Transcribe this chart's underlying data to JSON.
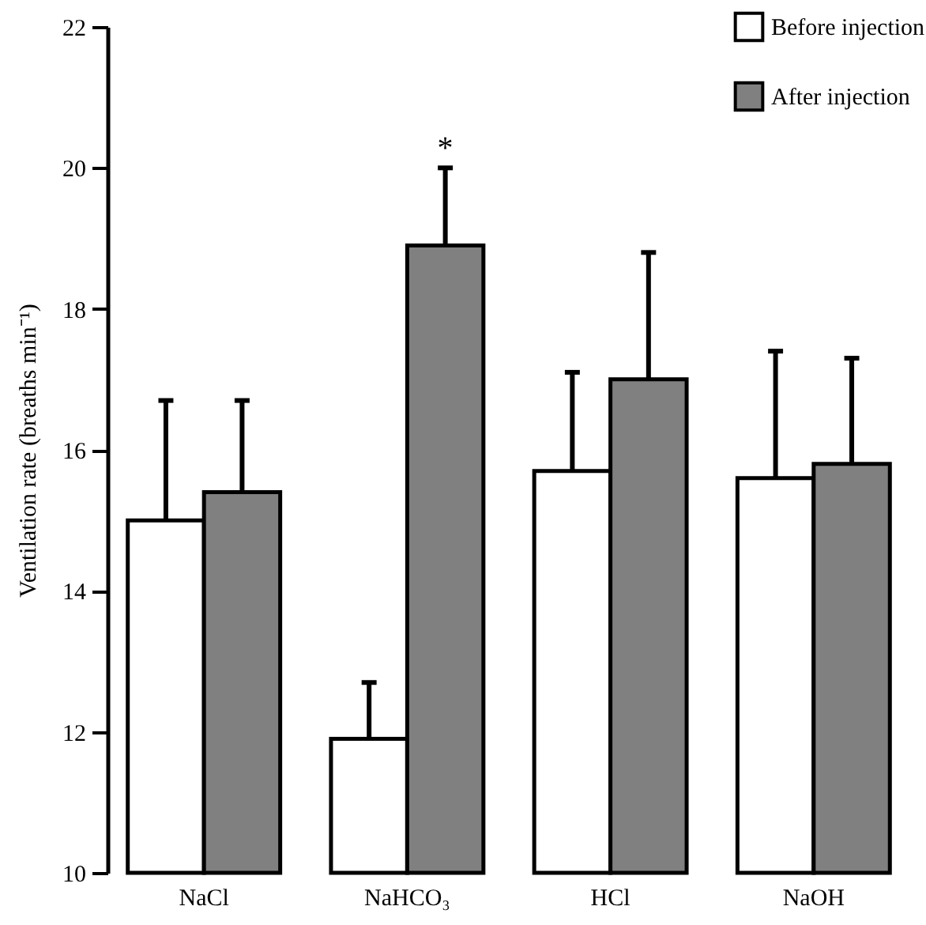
{
  "chart_data": {
    "type": "bar",
    "ylabel": "Ventilation rate (breaths min⁻¹)",
    "categories": [
      "NaCl",
      "NaHCO₃",
      "HCl",
      "NaOH"
    ],
    "series": [
      {
        "name": "Before injection",
        "color": "#ffffff",
        "values": [
          15.0,
          11.9,
          15.7,
          15.6
        ],
        "errors": [
          [
            15.0,
            16.7
          ],
          [
            11.9,
            12.7
          ],
          [
            15.7,
            17.1
          ],
          [
            15.6,
            17.4
          ]
        ]
      },
      {
        "name": "After injection",
        "color": "#808080",
        "values": [
          15.4,
          18.9,
          17.0,
          15.8
        ],
        "errors": [
          [
            15.4,
            16.7
          ],
          [
            18.9,
            20.0
          ],
          [
            17.0,
            18.8
          ],
          [
            15.8,
            17.3
          ]
        ]
      }
    ],
    "ylim": [
      10,
      22
    ],
    "yticks": [
      10,
      12,
      14,
      16,
      18,
      20,
      22
    ],
    "grid": false,
    "legend": "top right",
    "annotations": [
      "*"
    ]
  }
}
